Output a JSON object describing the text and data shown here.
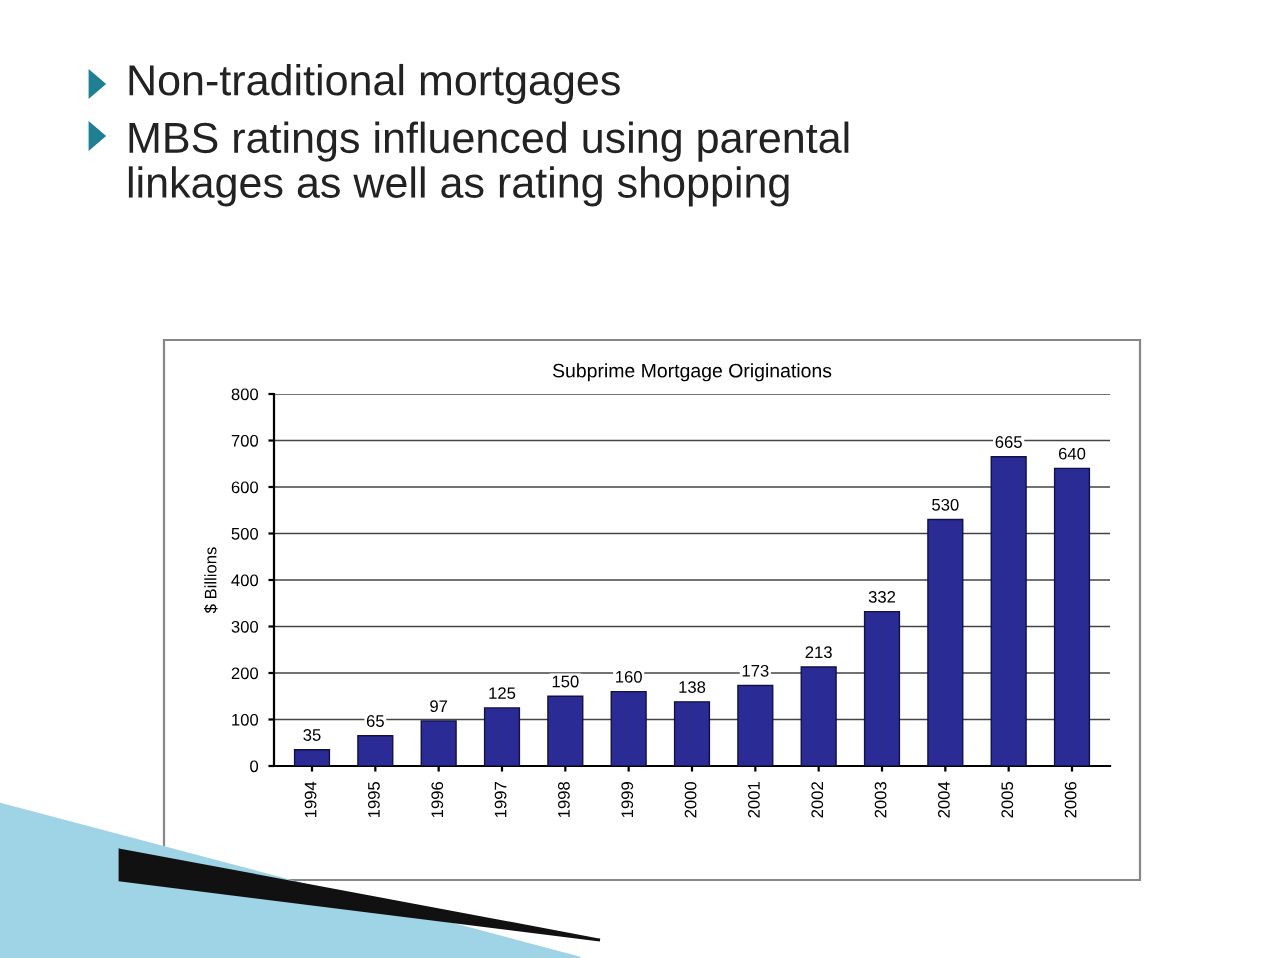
{
  "chart_data": {
    "type": "bar",
    "title": "Subprime Mortgage Originations",
    "ylabel": "$ Billions",
    "annotations": [
      "Non-traditional mortgages",
      "MBS ratings influenced using parental\nlinkages as well as rating shopping"
    ],
    "categories": [
      "1994",
      "1995",
      "1996",
      "1997",
      "1998",
      "1999",
      "2000",
      "2001",
      "2002",
      "2003",
      "2004",
      "2005",
      "2006"
    ],
    "values": [
      35,
      65,
      97,
      125,
      150,
      160,
      138,
      173,
      213,
      332,
      530,
      665,
      640
    ],
    "color": "#2b2b96",
    "ylim": [
      0,
      800
    ],
    "yticks": [
      0,
      100,
      200,
      300,
      400,
      500,
      600,
      700,
      800
    ],
    "grid": "y",
    "data_labels": true
  }
}
